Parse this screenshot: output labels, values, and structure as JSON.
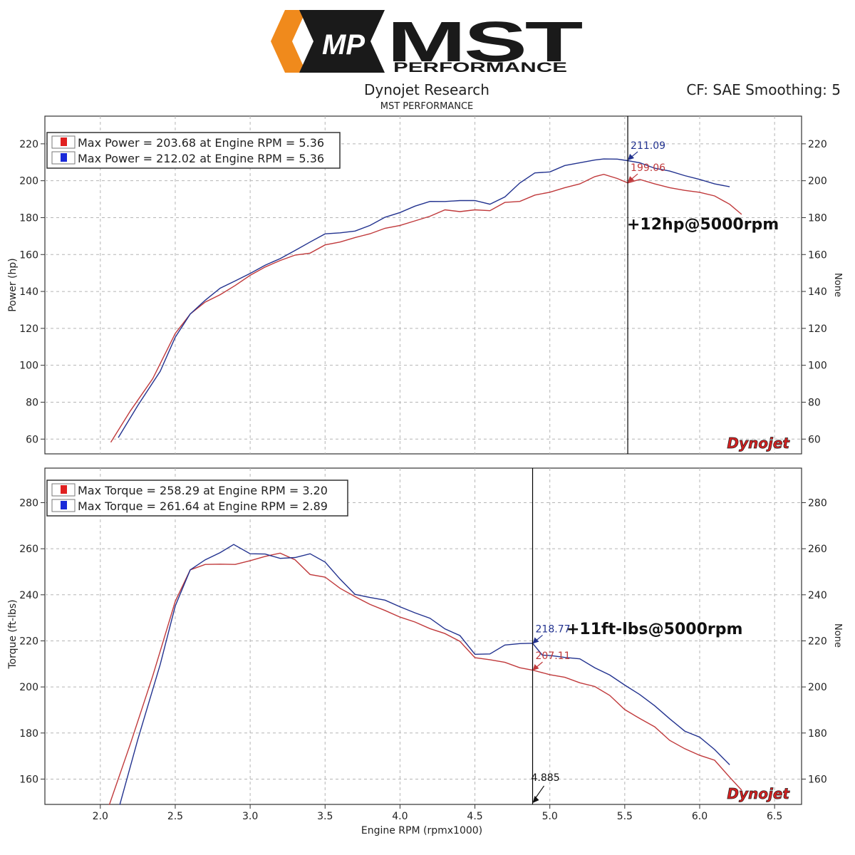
{
  "header": {
    "logo_mp": "MP",
    "logo_mst": "MST",
    "logo_performance": "PERFORMANCE",
    "title": "Dynojet Research",
    "subtitle": "MST PERFORMANCE",
    "correction": "CF: SAE Smoothing: 5"
  },
  "colors": {
    "red": "#c0393b",
    "blue": "#22328f",
    "grid": "#b5b5b5",
    "logo_orange": "#f08a1c"
  },
  "watermark": "Dynojet",
  "chart_data": [
    {
      "type": "line",
      "ylabel": "Power (hp)",
      "y2label": "None",
      "ylim": [
        52,
        235
      ],
      "xlim": [
        1.63,
        6.68
      ],
      "yticks": [
        60,
        80,
        100,
        120,
        140,
        160,
        180,
        200,
        220
      ],
      "grid": true,
      "legend": [
        "Max Power = 203.68 at Engine RPM = 5.36",
        "Max Power = 212.02 at Engine RPM = 5.36"
      ],
      "cursor_x": 5.52,
      "annotation": "+12hp@5000rpm",
      "cursor_labels": [
        {
          "text": "211.09",
          "x": 5.52,
          "y": 211.09,
          "series": 1
        },
        {
          "text": "199.06",
          "x": 5.52,
          "y": 199.06,
          "series": 0
        }
      ],
      "series": [
        {
          "color": "red",
          "points": [
            [
              2.07,
              58.5
            ],
            [
              2.2,
              75
            ],
            [
              2.35,
              93
            ],
            [
              2.5,
              117
            ],
            [
              2.6,
              128
            ],
            [
              2.7,
              134
            ],
            [
              2.8,
              138.5
            ],
            [
              2.9,
              143
            ],
            [
              3.0,
              149
            ],
            [
              3.1,
              153
            ],
            [
              3.2,
              157
            ],
            [
              3.3,
              159.5
            ],
            [
              3.4,
              161
            ],
            [
              3.5,
              165
            ],
            [
              3.6,
              167
            ],
            [
              3.7,
              169
            ],
            [
              3.8,
              171.5
            ],
            [
              3.9,
              174
            ],
            [
              4.0,
              176
            ],
            [
              4.1,
              178
            ],
            [
              4.2,
              181
            ],
            [
              4.3,
              184
            ],
            [
              4.4,
              183.5
            ],
            [
              4.5,
              184
            ],
            [
              4.6,
              184
            ],
            [
              4.7,
              188
            ],
            [
              4.8,
              189
            ],
            [
              4.9,
              192
            ],
            [
              5.0,
              194
            ],
            [
              5.1,
              196
            ],
            [
              5.2,
              198.5
            ],
            [
              5.3,
              202
            ],
            [
              5.36,
              203.68
            ],
            [
              5.45,
              201
            ],
            [
              5.52,
              199.06
            ],
            [
              5.6,
              200.5
            ],
            [
              5.7,
              198.5
            ],
            [
              5.8,
              196
            ],
            [
              5.9,
              195
            ],
            [
              6.0,
              193.5
            ],
            [
              6.1,
              192
            ],
            [
              6.2,
              187
            ],
            [
              6.28,
              182
            ]
          ]
        },
        {
          "color": "blue",
          "points": [
            [
              2.12,
              61
            ],
            [
              2.25,
              78
            ],
            [
              2.4,
              97
            ],
            [
              2.5,
              115
            ],
            [
              2.6,
              128
            ],
            [
              2.7,
              135
            ],
            [
              2.8,
              142
            ],
            [
              2.9,
              145.5
            ],
            [
              3.0,
              150
            ],
            [
              3.1,
              154
            ],
            [
              3.2,
              158
            ],
            [
              3.3,
              162
            ],
            [
              3.4,
              167
            ],
            [
              3.5,
              171
            ],
            [
              3.6,
              172
            ],
            [
              3.7,
              172.5
            ],
            [
              3.8,
              176
            ],
            [
              3.9,
              180
            ],
            [
              4.0,
              183
            ],
            [
              4.1,
              186
            ],
            [
              4.2,
              189
            ],
            [
              4.3,
              188.5
            ],
            [
              4.4,
              189.5
            ],
            [
              4.5,
              189
            ],
            [
              4.6,
              187.5
            ],
            [
              4.7,
              191
            ],
            [
              4.8,
              199
            ],
            [
              4.9,
              204
            ],
            [
              5.0,
              205
            ],
            [
              5.1,
              208
            ],
            [
              5.2,
              210
            ],
            [
              5.3,
              211
            ],
            [
              5.36,
              212.02
            ],
            [
              5.45,
              211.5
            ],
            [
              5.52,
              211.09
            ],
            [
              5.6,
              209.5
            ],
            [
              5.7,
              207
            ],
            [
              5.8,
              205
            ],
            [
              5.9,
              203
            ],
            [
              6.0,
              200.5
            ],
            [
              6.1,
              198.5
            ],
            [
              6.2,
              196.5
            ]
          ]
        }
      ]
    },
    {
      "type": "line",
      "xlabel": "Engine RPM (rpmx1000)",
      "ylabel": "Torque (ft-lbs)",
      "y2label": "None",
      "ylim": [
        149,
        295
      ],
      "xlim": [
        1.63,
        6.68
      ],
      "yticks": [
        160,
        180,
        200,
        220,
        240,
        260,
        280
      ],
      "xticks": [
        2.0,
        2.5,
        3.0,
        3.5,
        4.0,
        4.5,
        5.0,
        5.5,
        6.0,
        6.5
      ],
      "grid": true,
      "legend": [
        "Max Torque = 258.29 at Engine RPM = 3.20",
        "Max Torque = 261.64 at Engine RPM = 2.89"
      ],
      "cursor_x": 4.885,
      "cursor_x_label": "4.885",
      "annotation": "+11ft-lbs@5000rpm",
      "cursor_labels": [
        {
          "text": "218.77",
          "x": 4.885,
          "y": 218.77,
          "series": 1
        },
        {
          "text": "207.11",
          "x": 4.885,
          "y": 207.11,
          "series": 0
        }
      ],
      "series": [
        {
          "color": "red",
          "points": [
            [
              2.06,
              149
            ],
            [
              2.2,
              175
            ],
            [
              2.35,
              205
            ],
            [
              2.5,
              237
            ],
            [
              2.6,
              251
            ],
            [
              2.7,
              253
            ],
            [
              2.8,
              253.5
            ],
            [
              2.9,
              253
            ],
            [
              3.0,
              255
            ],
            [
              3.1,
              256.5
            ],
            [
              3.2,
              258.29
            ],
            [
              3.3,
              255
            ],
            [
              3.4,
              249
            ],
            [
              3.5,
              247.5
            ],
            [
              3.6,
              243
            ],
            [
              3.7,
              239
            ],
            [
              3.8,
              236
            ],
            [
              3.9,
              233
            ],
            [
              4.0,
              230.5
            ],
            [
              4.1,
              228
            ],
            [
              4.2,
              225.5
            ],
            [
              4.3,
              223
            ],
            [
              4.4,
              220
            ],
            [
              4.5,
              212.5
            ],
            [
              4.6,
              212
            ],
            [
              4.7,
              210.5
            ],
            [
              4.8,
              208.5
            ],
            [
              4.885,
              207.11
            ],
            [
              5.0,
              205.5
            ],
            [
              5.1,
              204
            ],
            [
              5.2,
              202
            ],
            [
              5.3,
              200
            ],
            [
              5.4,
              196.5
            ],
            [
              5.5,
              190
            ],
            [
              5.6,
              186.5
            ],
            [
              5.7,
              182.5
            ],
            [
              5.8,
              177
            ],
            [
              5.9,
              173
            ],
            [
              6.0,
              170.5
            ],
            [
              6.1,
              168
            ],
            [
              6.2,
              161
            ],
            [
              6.28,
              155
            ]
          ]
        },
        {
          "color": "blue",
          "points": [
            [
              2.13,
              149
            ],
            [
              2.25,
              177
            ],
            [
              2.4,
              210
            ],
            [
              2.5,
              235
            ],
            [
              2.6,
              251
            ],
            [
              2.7,
              255
            ],
            [
              2.8,
              258.5
            ],
            [
              2.89,
              261.64
            ],
            [
              3.0,
              258
            ],
            [
              3.1,
              257.5
            ],
            [
              3.2,
              256
            ],
            [
              3.3,
              256
            ],
            [
              3.4,
              258
            ],
            [
              3.5,
              254
            ],
            [
              3.6,
              247
            ],
            [
              3.7,
              240
            ],
            [
              3.8,
              239
            ],
            [
              3.9,
              237.5
            ],
            [
              4.0,
              235
            ],
            [
              4.1,
              232
            ],
            [
              4.2,
              230
            ],
            [
              4.3,
              225
            ],
            [
              4.4,
              222.5
            ],
            [
              4.5,
              214
            ],
            [
              4.6,
              214.5
            ],
            [
              4.7,
              218
            ],
            [
              4.8,
              219
            ],
            [
              4.885,
              218.77
            ],
            [
              4.95,
              214
            ],
            [
              5.0,
              213.5
            ],
            [
              5.1,
              213
            ],
            [
              5.2,
              212
            ],
            [
              5.3,
              208.5
            ],
            [
              5.4,
              205
            ],
            [
              5.5,
              201
            ],
            [
              5.6,
              196.5
            ],
            [
              5.7,
              192
            ],
            [
              5.8,
              186
            ],
            [
              5.9,
              181
            ],
            [
              6.0,
              178
            ],
            [
              6.1,
              173
            ],
            [
              6.2,
              166
            ]
          ]
        }
      ]
    }
  ]
}
